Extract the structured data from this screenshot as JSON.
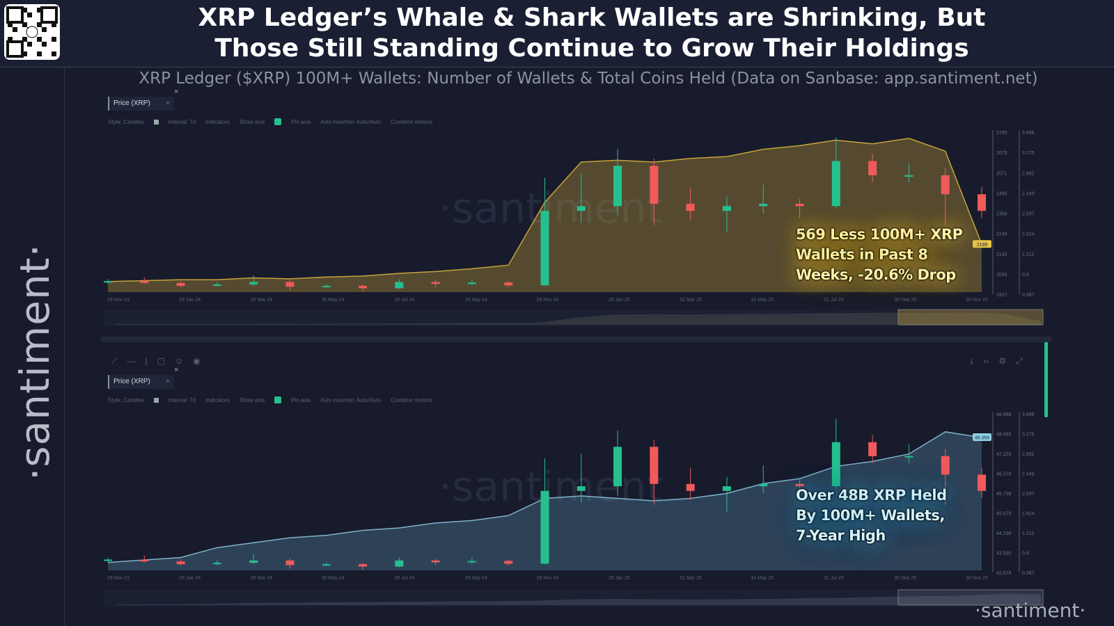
{
  "header": {
    "title_line1": "XRP Ledger’s Whale & Shark Wallets are Shrinking, But",
    "title_line2": "Those Still Standing Continue to Grow Their Holdings",
    "subtitle": "XRP Ledger ($XRP) 100M+ Wallets: Number of Wallets & Total Coins Held (Data on Sanbase: app.santiment.net)",
    "qr_icon": "qr-code-icon"
  },
  "branding": {
    "vertical": "·santiment·",
    "watermark": "·santiment",
    "corner": "·santiment·"
  },
  "toolbar": {
    "chip_label": "Price (XRP)",
    "style": "Style: Candles",
    "interval": "Interval: 7d",
    "indicators": "Indicators",
    "show_axis": "Show axis",
    "pin_axis": "Pin axis",
    "axis_maxmin": "Axis max/min: Auto/Auto",
    "combine": "Combine metrics"
  },
  "annotations": {
    "top": [
      "569 Less 100M+ XRP",
      "Wallets in Past 8",
      "Weeks, -20.6% Drop"
    ],
    "bottom": [
      "Over 48B XRP Held",
      "By 100M+ Wallets,",
      "7-Year High"
    ]
  },
  "colors": {
    "up": "#26c08f",
    "down": "#f05a5a",
    "wallets": "#c9a43a",
    "holdings": "#7fb3c9",
    "background": "#171b2c"
  },
  "chart_data": [
    {
      "type": "area+candlestick",
      "metric": "Number of 100M+ XRP wallets with price (XRP) candles",
      "x": [
        "29 Nov 23",
        "29 Dec 23",
        "29 Jan 24",
        "29 Feb 24",
        "30 Mar 24",
        "30 Apr 24",
        "30 May 24",
        "30 Jun 24",
        "30 Jul 24",
        "30 Aug 24",
        "29 Sep 24",
        "29 Oct 24",
        "28 Nov 24",
        "29 Dec 24",
        "29 Jan 25",
        "28 Feb 25",
        "31 Mar 25",
        "30 Apr 25",
        "31 May 25",
        "30 Jun 25",
        "31 Jul 25",
        "31 Aug 25",
        "30 Sep 25",
        "31 Oct 25",
        "30 Nov 25"
      ],
      "x_tick_labels": [
        "29 Nov 23",
        "29 Jan 24",
        "30 Mar 24",
        "30 May 24",
        "30 Jul 24",
        "29 Sep 24",
        "28 Nov 24",
        "29 Jan 25",
        "31 Mar 25",
        "31 May 25",
        "31 Jul 25",
        "30 Sep 25",
        "30 Nov 25"
      ],
      "series": [
        {
          "values": [
            1985,
            1990,
            1995,
            1995,
            2005,
            2000,
            2010,
            2015,
            2030,
            2040,
            2055,
            2075,
            2420,
            2640,
            2650,
            2640,
            2660,
            2670,
            2710,
            2730,
            2760,
            2740,
            2770,
            2700,
            2189
          ]
        }
      ],
      "price": {
        "open": [
          0.6,
          0.62,
          0.58,
          0.52,
          0.55,
          0.6,
          0.5,
          0.52,
          0.47,
          0.6,
          0.56,
          0.59,
          0.53,
          2.1,
          2.2,
          3.05,
          2.25,
          2.1,
          2.2,
          2.25,
          2.2,
          3.15,
          2.85,
          2.85,
          2.45
        ],
        "close": [
          0.62,
          0.58,
          0.52,
          0.55,
          0.6,
          0.5,
          0.52,
          0.47,
          0.6,
          0.56,
          0.59,
          0.53,
          2.1,
          2.2,
          3.05,
          2.25,
          2.1,
          2.2,
          2.25,
          2.2,
          3.15,
          2.85,
          2.85,
          2.45,
          2.1
        ],
        "high": [
          0.66,
          0.7,
          0.62,
          0.6,
          0.74,
          0.64,
          0.56,
          0.55,
          0.66,
          0.64,
          0.66,
          0.62,
          2.8,
          2.9,
          3.4,
          3.2,
          2.6,
          2.4,
          2.65,
          2.35,
          3.65,
          3.3,
          3.1,
          3.0,
          2.6
        ],
        "low": [
          0.56,
          0.56,
          0.49,
          0.5,
          0.52,
          0.42,
          0.48,
          0.4,
          0.45,
          0.5,
          0.53,
          0.49,
          0.52,
          1.85,
          2.0,
          1.8,
          1.9,
          1.65,
          2.05,
          1.95,
          2.15,
          2.7,
          2.7,
          1.8,
          1.95
        ]
      },
      "y_left_ticks": [
        "2785",
        "2679",
        "2571",
        "2465",
        "2356",
        "2248",
        "2142",
        "2034",
        "1927"
      ],
      "y_left_range": [
        1927,
        2785
      ],
      "y_left_current": "2189",
      "y_right_ticks": [
        "3.686",
        "3.275",
        "2.862",
        "2.449",
        "2.037",
        "1.624",
        "1.212",
        "0.8",
        "0.387"
      ],
      "y_right_range": [
        0.387,
        3.686
      ],
      "grid": false
    },
    {
      "type": "area+candlestick",
      "metric": "Total XRP held by 100M+ wallets (billions) with price (XRP) candles",
      "x": [
        "29 Nov 23",
        "29 Dec 23",
        "29 Jan 24",
        "29 Feb 24",
        "30 Mar 24",
        "30 Apr 24",
        "30 May 24",
        "30 Jun 24",
        "30 Jul 24",
        "30 Aug 24",
        "29 Sep 24",
        "29 Oct 24",
        "28 Nov 24",
        "29 Dec 24",
        "29 Jan 25",
        "28 Feb 25",
        "31 Mar 25",
        "30 Apr 25",
        "31 May 25",
        "30 Jun 25",
        "31 Jul 25",
        "31 Aug 25",
        "30 Sep 25",
        "31 Oct 25",
        "30 Nov 25"
      ],
      "x_tick_labels": [
        "29 Nov 23",
        "29 Jan 24",
        "30 Mar 24",
        "30 May 24",
        "30 Jul 24",
        "29 Sep 24",
        "28 Nov 24",
        "29 Jan 25",
        "31 Mar 25",
        "31 May 25",
        "31 Jul 25",
        "30 Sep 25",
        "30 Nov 25"
      ],
      "series": [
        {
          "values": [
            43.0,
            43.1,
            43.2,
            43.6,
            43.8,
            44.0,
            44.1,
            44.3,
            44.4,
            44.6,
            44.7,
            44.9,
            45.6,
            45.7,
            45.6,
            45.5,
            45.6,
            45.8,
            46.2,
            46.4,
            46.9,
            47.1,
            47.4,
            48.3,
            48.07
          ]
        }
      ],
      "y_left_ticks": [
        "48.888",
        "48.069",
        "47.229",
        "46.378",
        "45.738",
        "45.079",
        "44.338",
        "43.530",
        "42.678"
      ],
      "y_left_range": [
        42.678,
        48.888
      ],
      "y_left_current": "48.069",
      "y_right_ticks": [
        "3.686",
        "3.275",
        "2.862",
        "2.449",
        "2.037",
        "1.624",
        "1.212",
        "0.8",
        "0.387"
      ],
      "y_right_range": [
        0.387,
        3.686
      ],
      "grid": false
    }
  ]
}
